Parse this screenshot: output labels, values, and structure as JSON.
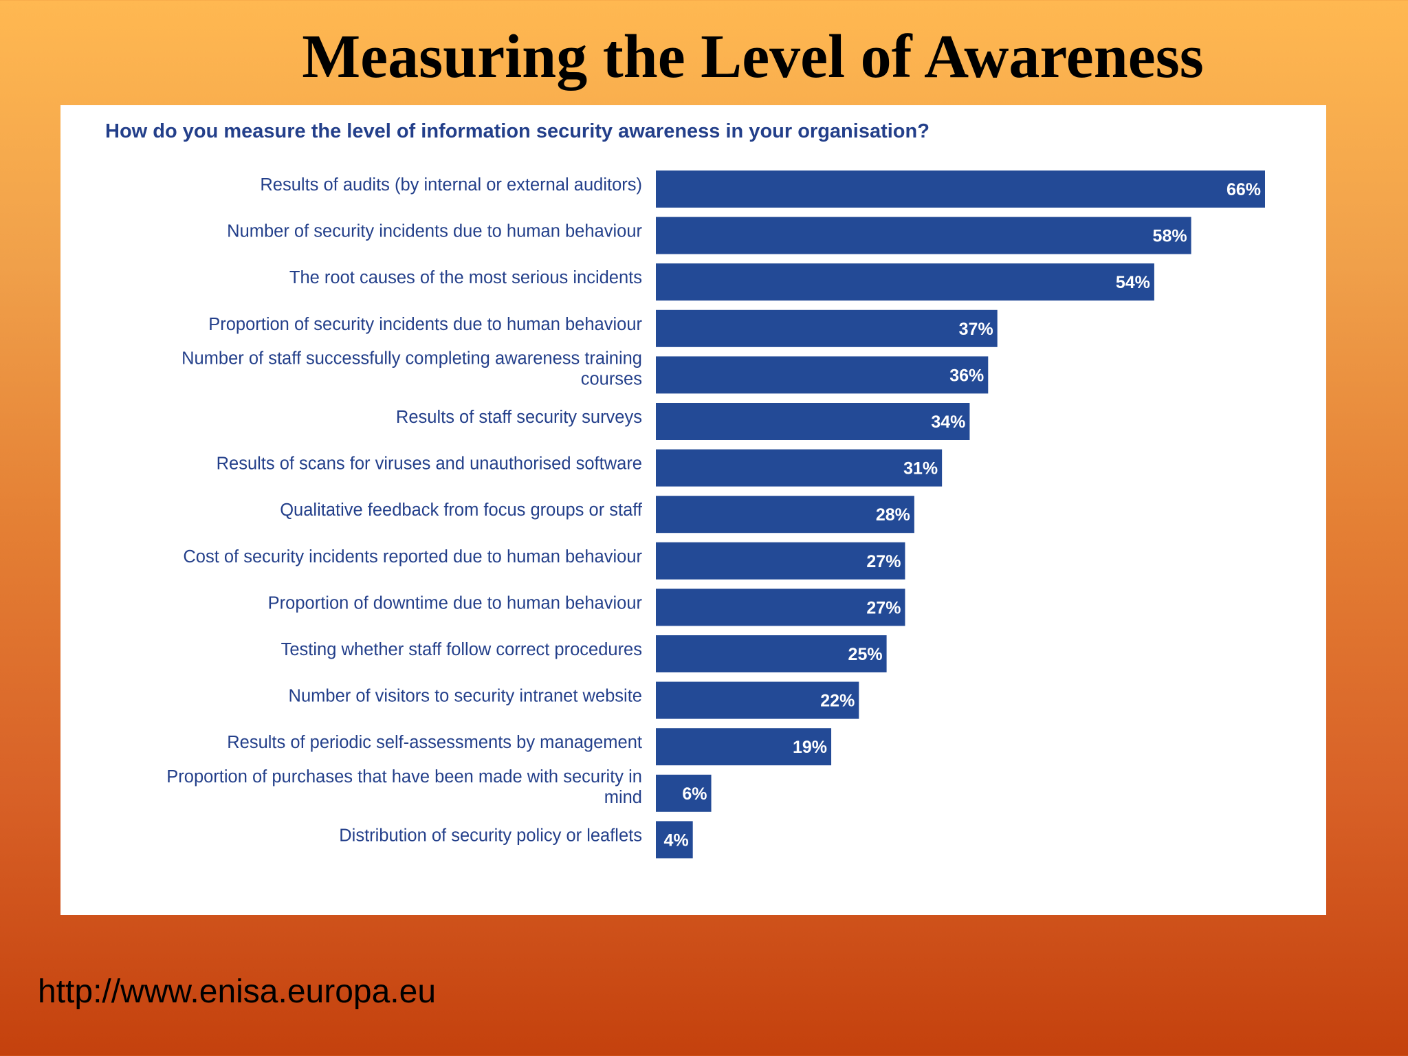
{
  "slide": {
    "title": "Measuring the Level of Awareness",
    "footer_url": "http://www.enisa.europa.eu"
  },
  "colors": {
    "bar": "#234a96",
    "label": "#233f8a",
    "value_label": "#ffffff",
    "panel": "#ffffff"
  },
  "chart_data": {
    "type": "bar",
    "orientation": "horizontal",
    "title": "How do you measure the level of information security awareness in your organisation?",
    "value_suffix": "%",
    "xlim": [
      0,
      70
    ],
    "grid": false,
    "categories": [
      [
        "Results of audits (by internal or external auditors)"
      ],
      [
        "Number of security incidents due to human behaviour"
      ],
      [
        "The root causes of the most serious incidents"
      ],
      [
        "Proportion of security incidents due to human behaviour"
      ],
      [
        "Number of staff successfully completing awareness training",
        "courses"
      ],
      [
        "Results of staff security surveys"
      ],
      [
        "Results of scans for viruses and unauthorised software"
      ],
      [
        "Qualitative feedback from focus groups or staff"
      ],
      [
        "Cost of security incidents reported due to human behaviour"
      ],
      [
        "Proportion of downtime due to human behaviour"
      ],
      [
        "Testing whether staff follow correct procedures"
      ],
      [
        "Number of visitors to security intranet website"
      ],
      [
        "Results of periodic self-assessments by management"
      ],
      [
        "Proportion of purchases that have been made with security in",
        "mind"
      ],
      [
        "Distribution of security policy or leaflets"
      ]
    ],
    "values": [
      66,
      58,
      54,
      37,
      36,
      34,
      31,
      28,
      27,
      27,
      25,
      22,
      19,
      6,
      4
    ]
  }
}
